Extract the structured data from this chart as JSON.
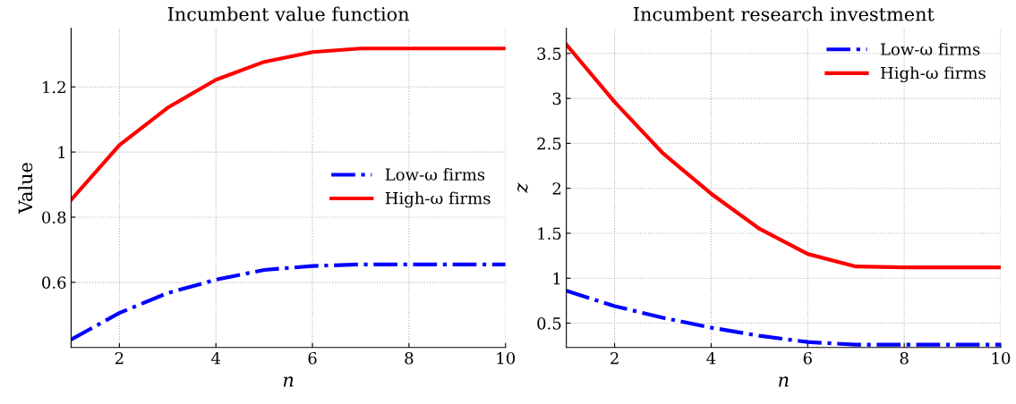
{
  "chart_data": [
    {
      "type": "line",
      "title": "Incumbent value function",
      "xlabel": "n",
      "ylabel": "Value",
      "x": [
        1,
        2,
        3,
        4,
        5,
        6,
        7,
        8,
        9,
        10
      ],
      "xlim": [
        1,
        10
      ],
      "xticks": [
        2,
        4,
        6,
        8,
        10
      ],
      "ylim": [
        0.4,
        1.38
      ],
      "yticks": [
        0.6,
        0.8,
        1,
        1.2
      ],
      "grid": true,
      "legend": "right",
      "series": [
        {
          "name": "Low-ω firms",
          "color": "#0000ff",
          "line_style": "dashed",
          "values": [
            0.424,
            0.506,
            0.567,
            0.608,
            0.638,
            0.65,
            0.655,
            0.655,
            0.655,
            0.655
          ]
        },
        {
          "name": "High-ω firms",
          "color": "#ff0000",
          "line_style": "solid",
          "values": [
            0.853,
            1.021,
            1.136,
            1.222,
            1.277,
            1.307,
            1.318,
            1.318,
            1.318,
            1.318
          ]
        }
      ]
    },
    {
      "type": "line",
      "title": "Incumbent research investment",
      "xlabel": "n",
      "ylabel": "z",
      "x": [
        1,
        2,
        3,
        4,
        5,
        6,
        7,
        8,
        9,
        10
      ],
      "xlim": [
        1,
        10
      ],
      "xticks": [
        2,
        4,
        6,
        8,
        10
      ],
      "ylim": [
        0.23,
        3.78
      ],
      "yticks": [
        0.5,
        1,
        1.5,
        2,
        2.5,
        3,
        3.5
      ],
      "grid": true,
      "legend": "top right",
      "series": [
        {
          "name": "Low-ω firms",
          "color": "#0000ff",
          "line_style": "dashed",
          "values": [
            0.86,
            0.69,
            0.56,
            0.45,
            0.36,
            0.29,
            0.26,
            0.26,
            0.26,
            0.26
          ]
        },
        {
          "name": "High-ω firms",
          "color": "#ff0000",
          "line_style": "solid",
          "values": [
            3.6,
            2.96,
            2.39,
            1.94,
            1.55,
            1.27,
            1.13,
            1.12,
            1.12,
            1.12
          ]
        }
      ]
    }
  ]
}
